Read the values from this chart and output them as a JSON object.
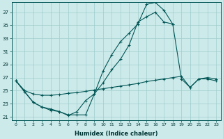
{
  "xlabel": "Humidex (Indice chaleur)",
  "bg_color": "#cdeaea",
  "grid_color": "#a0cccc",
  "line_color": "#005555",
  "xlim": [
    -0.5,
    23.5
  ],
  "ylim": [
    20.5,
    38.5
  ],
  "xticks": [
    0,
    1,
    2,
    3,
    4,
    5,
    6,
    7,
    8,
    9,
    10,
    11,
    12,
    13,
    14,
    15,
    16,
    17,
    18,
    19,
    20,
    21,
    22,
    23
  ],
  "yticks": [
    21,
    23,
    25,
    27,
    29,
    31,
    33,
    35,
    37
  ],
  "line1_x": [
    0,
    1,
    2,
    3,
    4,
    5,
    6,
    7,
    8,
    9,
    10,
    11,
    12,
    13,
    14,
    15,
    16,
    17,
    18
  ],
  "line1_y": [
    26.5,
    24.8,
    23.2,
    22.5,
    22.2,
    21.8,
    21.3,
    21.3,
    21.3,
    24.5,
    28.0,
    30.5,
    32.5,
    33.8,
    35.2,
    38.2,
    38.5,
    37.3,
    35.2
  ],
  "line2_x": [
    0,
    2,
    3,
    4,
    5,
    6,
    7,
    8,
    9,
    10,
    11,
    12,
    13,
    14,
    15,
    16,
    17,
    18,
    19,
    20,
    21,
    22,
    23
  ],
  "line2_y": [
    26.5,
    23.2,
    22.5,
    22.0,
    21.8,
    21.2,
    21.8,
    23.5,
    24.5,
    26.2,
    28.2,
    29.8,
    32.0,
    35.5,
    36.3,
    37.0,
    35.5,
    35.2,
    26.8,
    25.5,
    26.8,
    26.8,
    26.5
  ],
  "line3_x": [
    0,
    1,
    2,
    3,
    4,
    5,
    6,
    7,
    8,
    9,
    10,
    11,
    12,
    13,
    14,
    15,
    16,
    17,
    18,
    19,
    20,
    21,
    22,
    23
  ],
  "line3_y": [
    26.5,
    25.0,
    24.5,
    24.3,
    24.3,
    24.4,
    24.6,
    24.7,
    24.9,
    25.1,
    25.3,
    25.5,
    25.7,
    25.9,
    26.1,
    26.4,
    26.6,
    26.8,
    27.0,
    27.2,
    25.5,
    26.8,
    27.0,
    26.8
  ]
}
